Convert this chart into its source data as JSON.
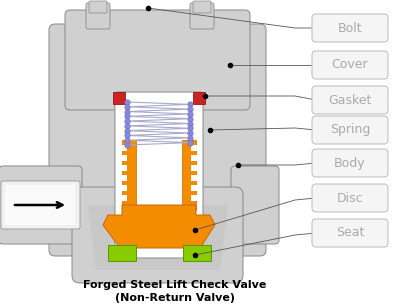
{
  "title_line1": "Forged Steel Lift Check Valve",
  "title_line2": "(Non-Return Valve)",
  "labels": [
    "Bolt",
    "Cover",
    "Gasket",
    "Spring",
    "Body",
    "Disc",
    "Seat"
  ],
  "body_color": "#d0d0d0",
  "body_edge": "#888888",
  "inner_color": "#e8e8e8",
  "disc_color": "#f48c00",
  "seat_color": "#88cc00",
  "gasket_color": "#cc2222",
  "spring_dot_color": "#8888dd",
  "spring_line_color": "#aaaacc",
  "background": "#ffffff",
  "text_color": "#aaaaaa",
  "label_box_color": "#f5f5f5",
  "label_box_edge": "#bbbbbb",
  "pipe_white": "#ffffff"
}
